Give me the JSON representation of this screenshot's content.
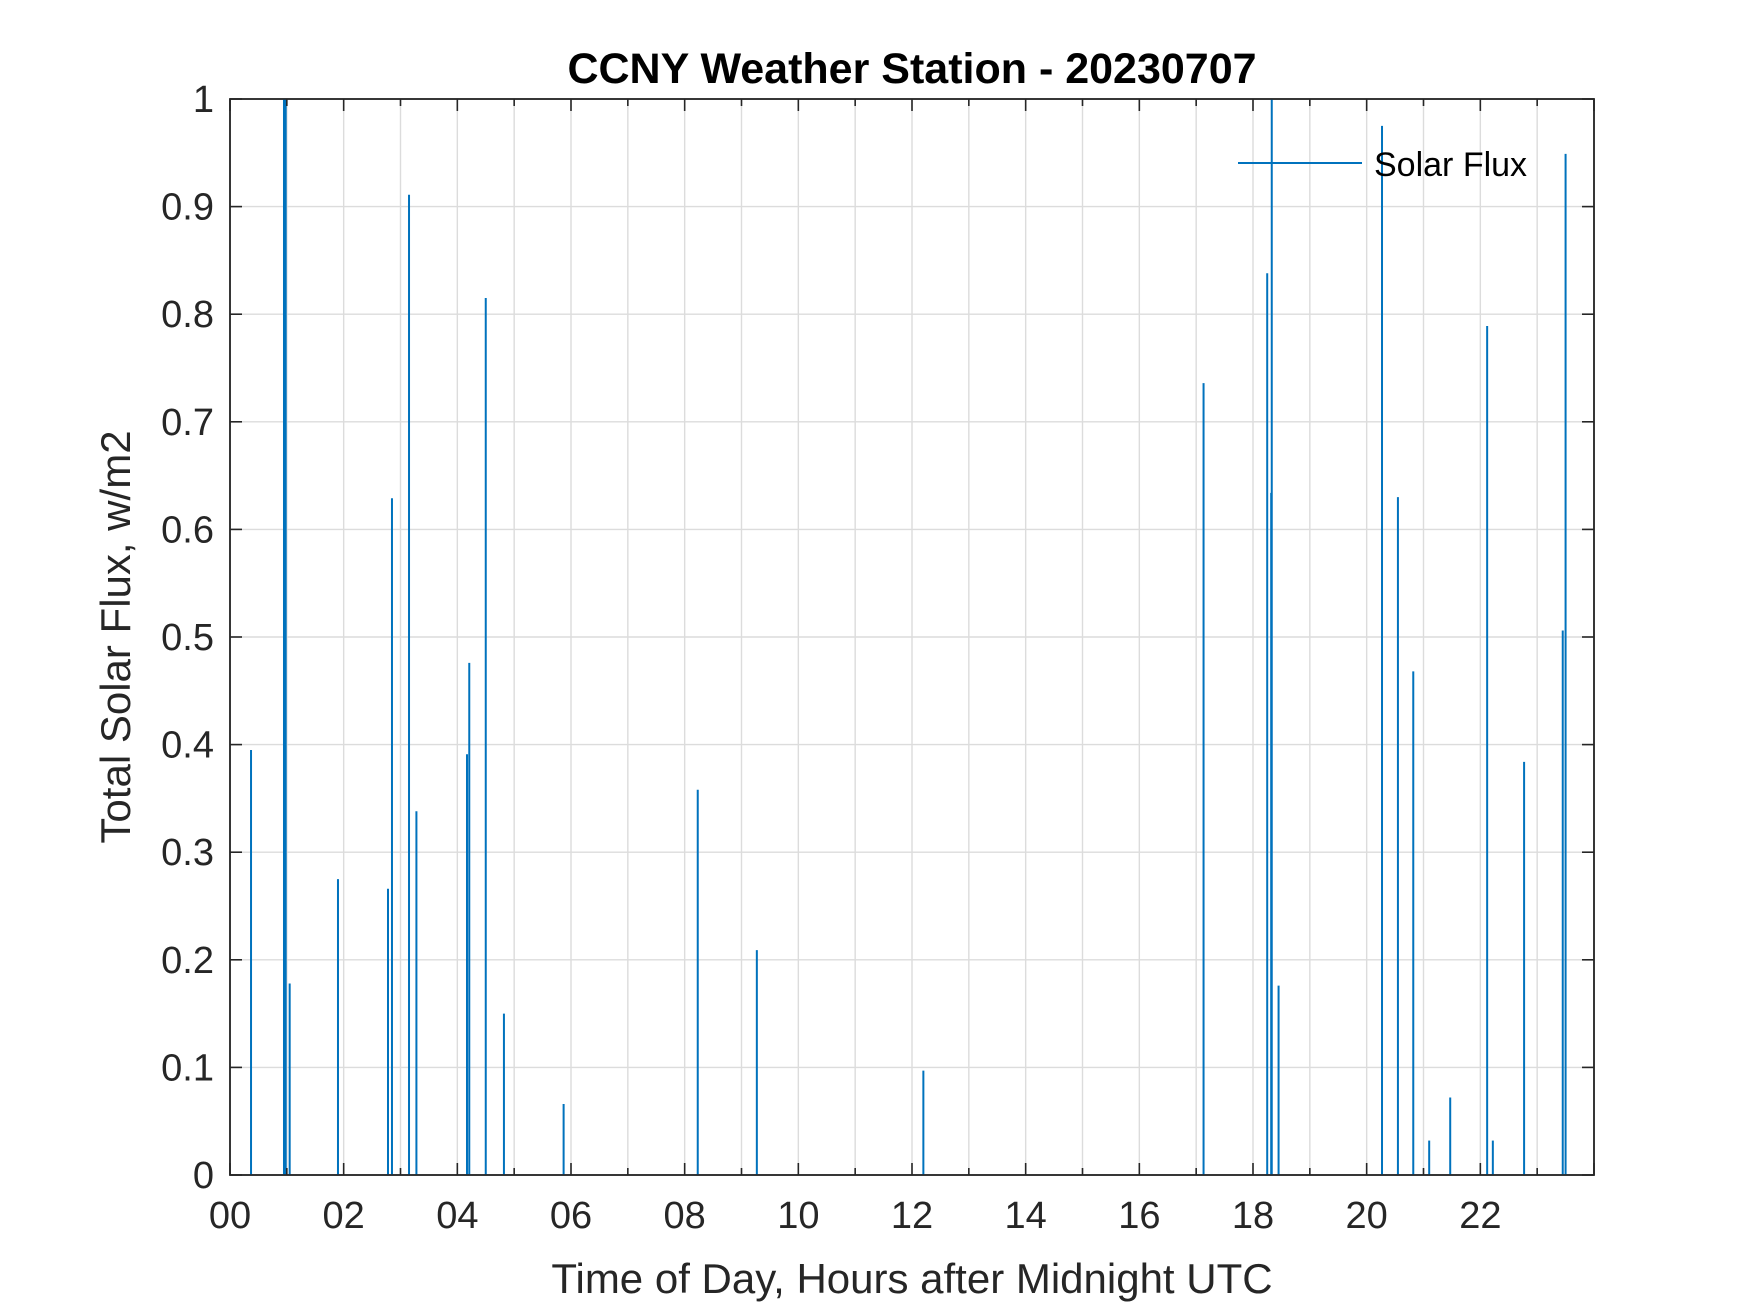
{
  "chart_data": {
    "type": "line",
    "title": "CCNY Weather Station - 20230707",
    "xlabel": "Time of Day, Hours after Midnight UTC",
    "ylabel": "Total Solar Flux, w/m2",
    "xlim": [
      0,
      24
    ],
    "ylim": [
      0,
      1
    ],
    "grid": true,
    "legend": {
      "entries": [
        "Solar Flux"
      ],
      "location": "top-right"
    },
    "x_ticks": [
      0,
      2,
      4,
      6,
      8,
      10,
      12,
      14,
      16,
      18,
      20,
      22
    ],
    "x_tick_labels": [
      "00",
      "02",
      "04",
      "06",
      "08",
      "10",
      "12",
      "14",
      "16",
      "18",
      "20",
      "22"
    ],
    "y_ticks": [
      0,
      0.1,
      0.2,
      0.3,
      0.4,
      0.5,
      0.6,
      0.7,
      0.8,
      0.9,
      1
    ],
    "y_tick_labels": [
      "0",
      "0.1",
      "0.2",
      "0.3",
      "0.4",
      "0.5",
      "0.6",
      "0.7",
      "0.8",
      "0.9",
      "1"
    ],
    "series": [
      {
        "name": "Solar Flux",
        "color": "#0072BD",
        "x": [
          0.37,
          0.95,
          0.98,
          1.05,
          1.9,
          2.78,
          2.85,
          3.15,
          3.28,
          4.17,
          4.21,
          4.5,
          4.82,
          5.87,
          8.23,
          9.27,
          12.2,
          17.13,
          18.25,
          18.32,
          18.33,
          18.45,
          20.27,
          20.55,
          20.82,
          21.1,
          21.47,
          22.12,
          22.22,
          22.77,
          23.45,
          23.5
        ],
        "values": [
          0.395,
          1.0,
          1.0,
          0.178,
          0.275,
          0.266,
          0.629,
          0.911,
          0.338,
          0.391,
          0.476,
          0.815,
          0.15,
          0.066,
          0.358,
          0.209,
          0.097,
          0.736,
          0.838,
          0.634,
          1.0,
          0.176,
          0.975,
          0.63,
          0.468,
          0.032,
          0.072,
          0.789,
          0.032,
          0.384,
          0.506,
          0.949
        ]
      }
    ]
  }
}
